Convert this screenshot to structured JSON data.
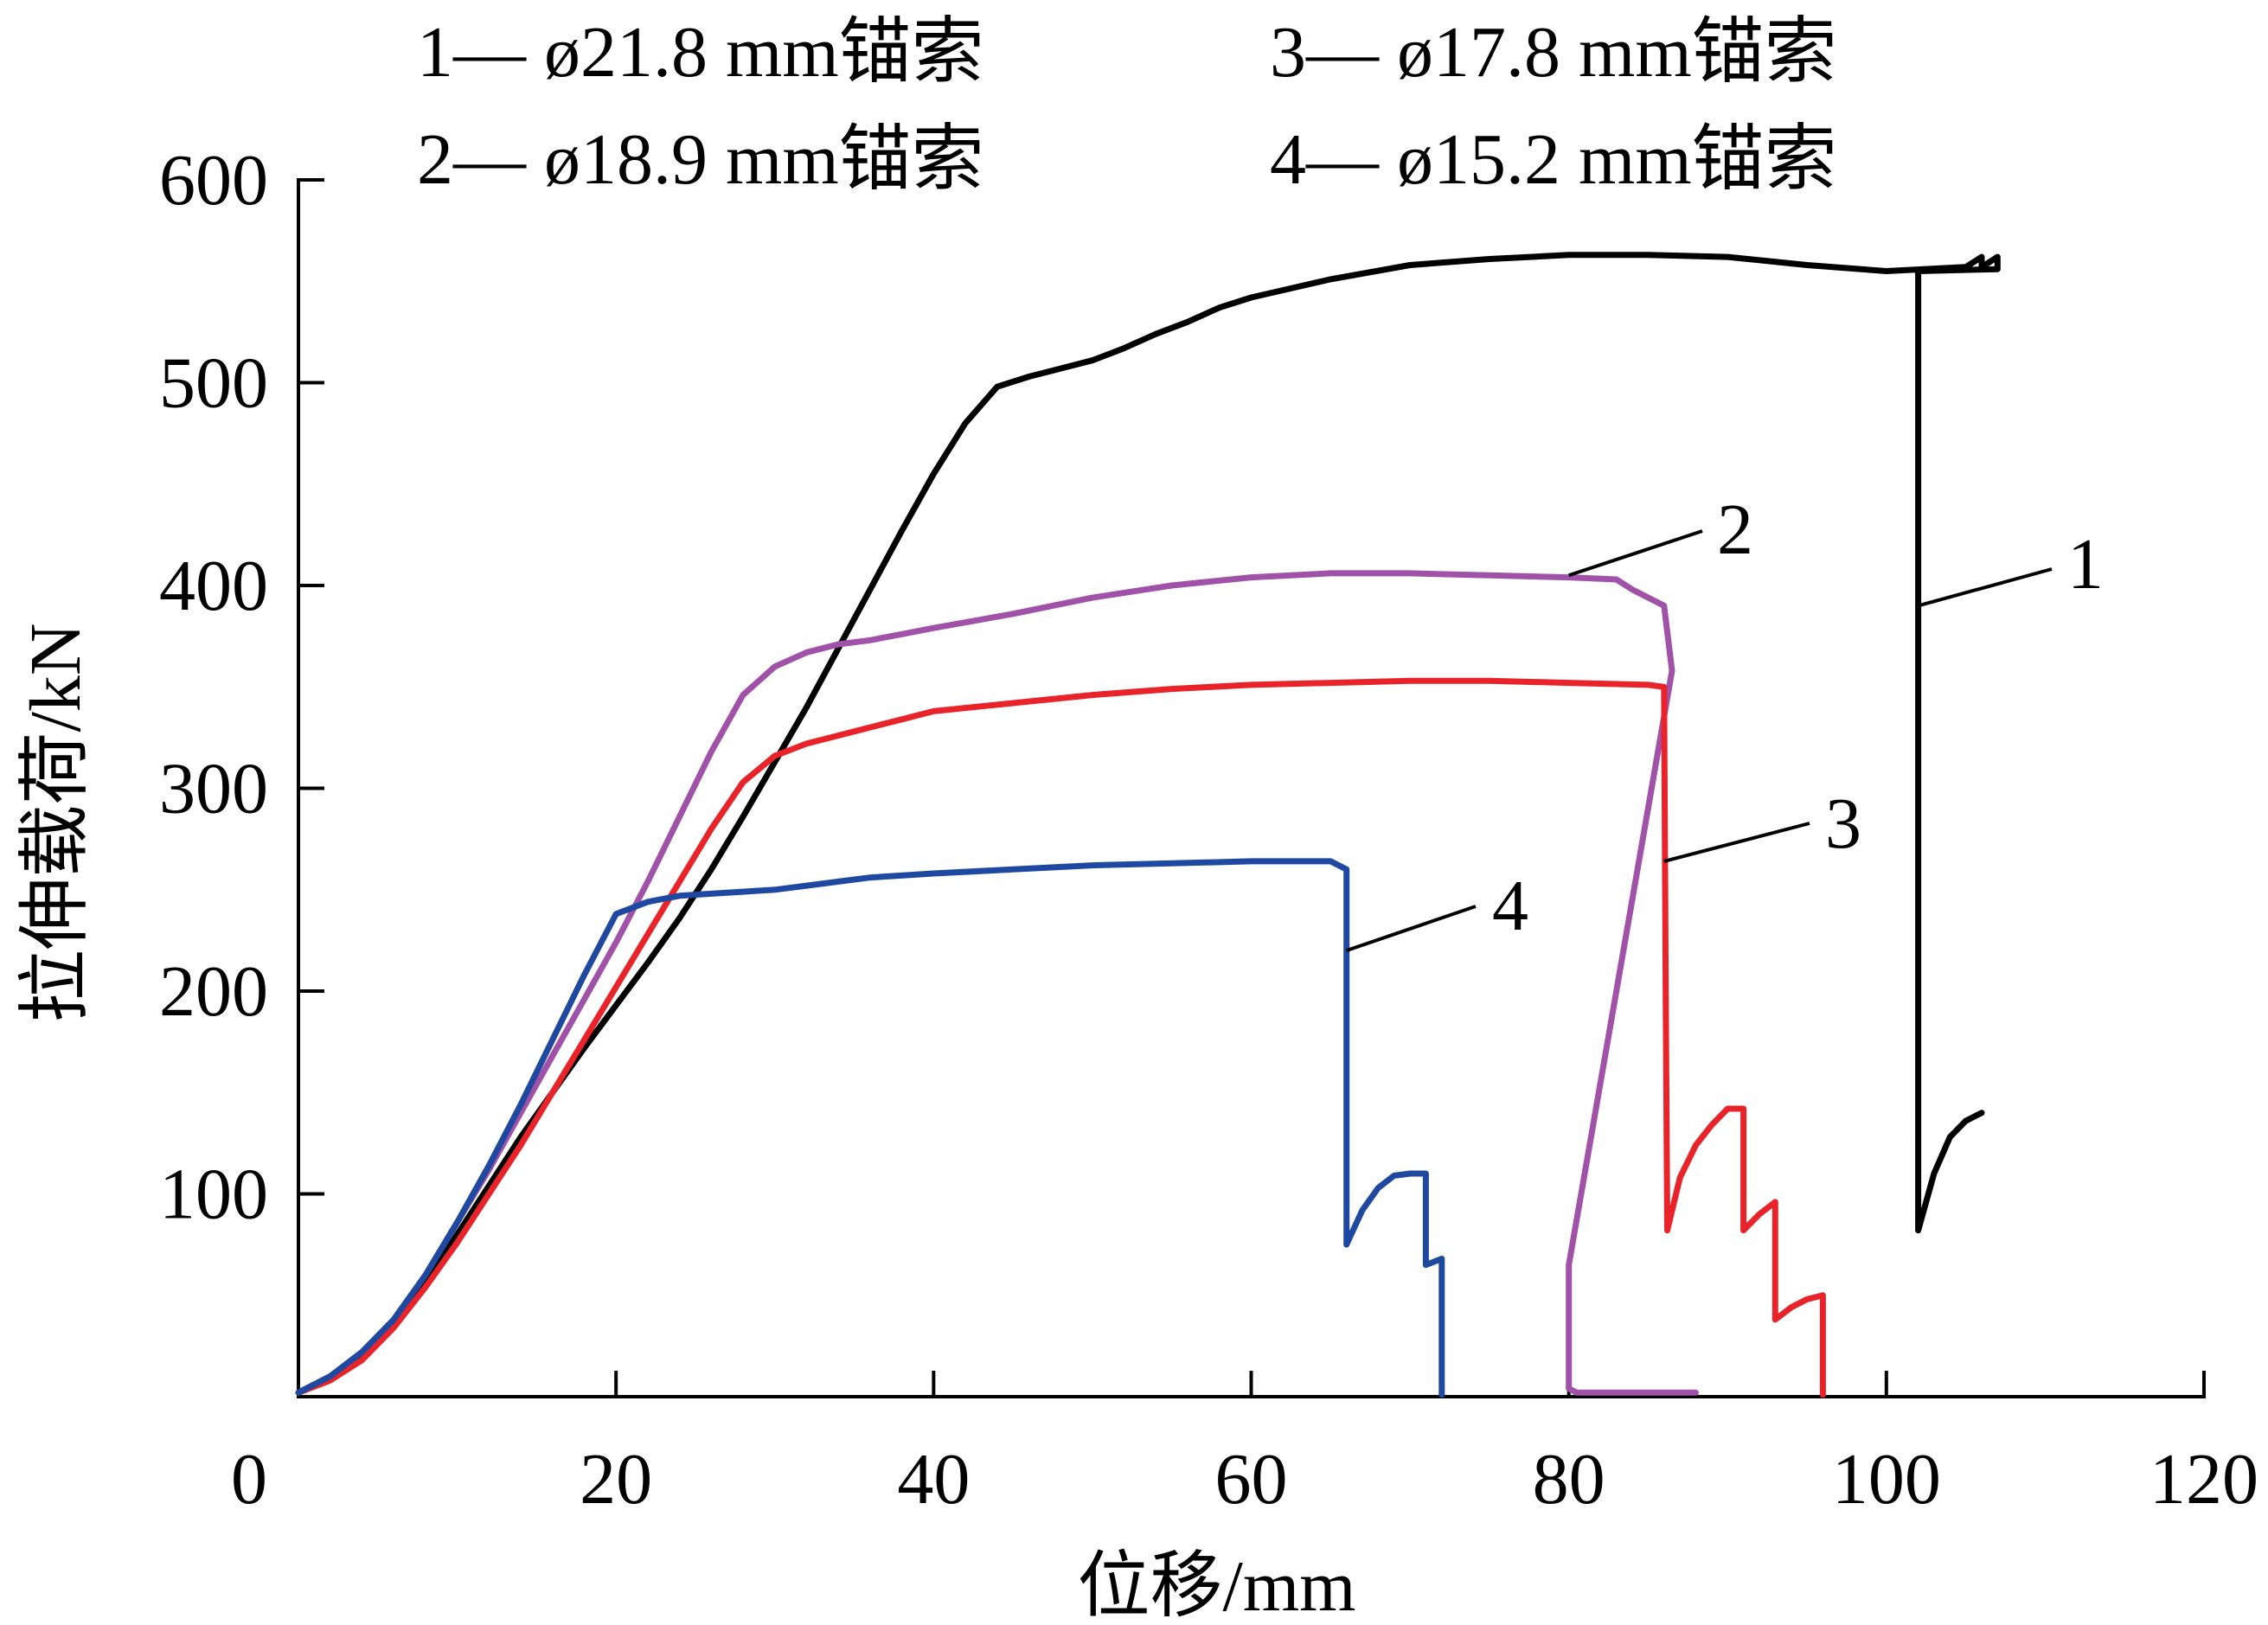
{
  "chart_data": {
    "type": "line",
    "title": "",
    "xlabel": "位移/mm",
    "ylabel": "拉伸载荷/kN",
    "xlim": [
      0,
      120
    ],
    "ylim": [
      0,
      600
    ],
    "xticks": [
      0,
      20,
      40,
      60,
      80,
      100,
      120
    ],
    "yticks": [
      100,
      200,
      300,
      400,
      500,
      600
    ],
    "grid": false,
    "legend_position": "top",
    "series": [
      {
        "name": "1— ø21.8 mm锚索",
        "label": "1",
        "color": "#000000",
        "x": [
          0,
          2,
          4,
          6,
          8,
          10,
          12,
          14,
          16,
          18,
          20,
          22,
          24,
          26,
          28,
          30,
          32,
          34,
          36,
          38,
          40,
          42,
          44,
          46,
          48,
          50,
          52,
          54,
          56,
          58,
          60,
          65,
          70,
          75,
          80,
          85,
          90,
          95,
          100,
          105,
          106,
          106,
          107,
          107,
          102,
          102,
          102,
          103,
          104,
          105,
          106
        ],
        "y": [
          2,
          10,
          20,
          36,
          56,
          80,
          104,
          128,
          150,
          172,
          193,
          214,
          236,
          260,
          286,
          313,
          340,
          369,
          398,
          427,
          455,
          480,
          498,
          503,
          507,
          511,
          517,
          524,
          530,
          537,
          542,
          551,
          558,
          561,
          563,
          563,
          562,
          558,
          555,
          557,
          562,
          557,
          562,
          556,
          555,
          230,
          82,
          110,
          128,
          136,
          140
        ]
      },
      {
        "name": "2— ø18.9 mm锚索",
        "label": "2",
        "color": "#a052a8",
        "x": [
          0,
          2,
          4,
          6,
          8,
          10,
          12,
          14,
          16,
          18,
          20,
          22,
          24,
          26,
          28,
          30,
          32,
          33,
          34,
          36,
          38,
          40,
          45,
          50,
          55,
          60,
          65,
          70,
          75,
          80,
          83,
          84,
          84.5,
          86,
          86.5,
          80,
          80,
          80.5,
          82,
          85,
          88
        ],
        "y": [
          2,
          10,
          22,
          38,
          60,
          86,
          112,
          140,
          168,
          196,
          224,
          254,
          286,
          318,
          346,
          360,
          367,
          369,
          371,
          373,
          376,
          379,
          386,
          394,
          400,
          404,
          406,
          406,
          405,
          404,
          403,
          398,
          396,
          390,
          358,
          65,
          4,
          2,
          2,
          2,
          2
        ]
      },
      {
        "name": "3— ø17.8 mm锚索",
        "label": "3",
        "color": "#e8242a",
        "x": [
          0,
          2,
          4,
          6,
          8,
          10,
          12,
          14,
          16,
          18,
          20,
          22,
          24,
          26,
          28,
          30,
          32,
          34,
          35,
          36,
          38,
          40,
          45,
          50,
          55,
          60,
          65,
          70,
          75,
          80,
          85,
          86,
          86.1,
          86.2,
          87,
          88,
          89,
          90,
          91,
          91,
          92,
          93,
          93,
          94,
          95,
          96,
          96,
          96
        ],
        "y": [
          2,
          8,
          18,
          34,
          54,
          76,
          100,
          124,
          150,
          176,
          202,
          228,
          254,
          280,
          303,
          316,
          322,
          326,
          328,
          330,
          334,
          338,
          342,
          346,
          349,
          351,
          352,
          353,
          353,
          352,
          351,
          350,
          200,
          82,
          108,
          124,
          134,
          142,
          142,
          82,
          90,
          96,
          38,
          44,
          48,
          50,
          50,
          1
        ]
      },
      {
        "name": "4— ø15.2 mm锚索",
        "label": "4",
        "color": "#1f49a0",
        "x": [
          0,
          2,
          4,
          6,
          8,
          10,
          12,
          14,
          16,
          18,
          20,
          22,
          24,
          26,
          28,
          30,
          32,
          34,
          36,
          40,
          45,
          50,
          55,
          60,
          65,
          66,
          66,
          67,
          68,
          69,
          70,
          71,
          71,
          72,
          72
        ],
        "y": [
          2,
          10,
          22,
          38,
          60,
          86,
          114,
          144,
          176,
          208,
          238,
          244,
          247,
          248,
          249,
          250,
          252,
          254,
          256,
          258,
          260,
          262,
          263,
          264,
          264,
          260,
          75,
          92,
          103,
          109,
          110,
          110,
          65,
          68,
          1
        ]
      }
    ],
    "legend_lines": [
      [
        "1— ø21.8 mm锚索",
        "3— ø17.8 mm锚索"
      ],
      [
        "2— ø18.9 mm锚索",
        "4— ø15.2 mm锚索"
      ]
    ],
    "curve_labels": [
      {
        "text": "1",
        "points_to": [
          102,
          390
        ]
      },
      {
        "text": "2",
        "points_to": [
          80,
          405
        ]
      },
      {
        "text": "3",
        "points_to": [
          86,
          264
        ]
      },
      {
        "text": "4",
        "points_to": [
          66,
          220
        ]
      }
    ]
  }
}
